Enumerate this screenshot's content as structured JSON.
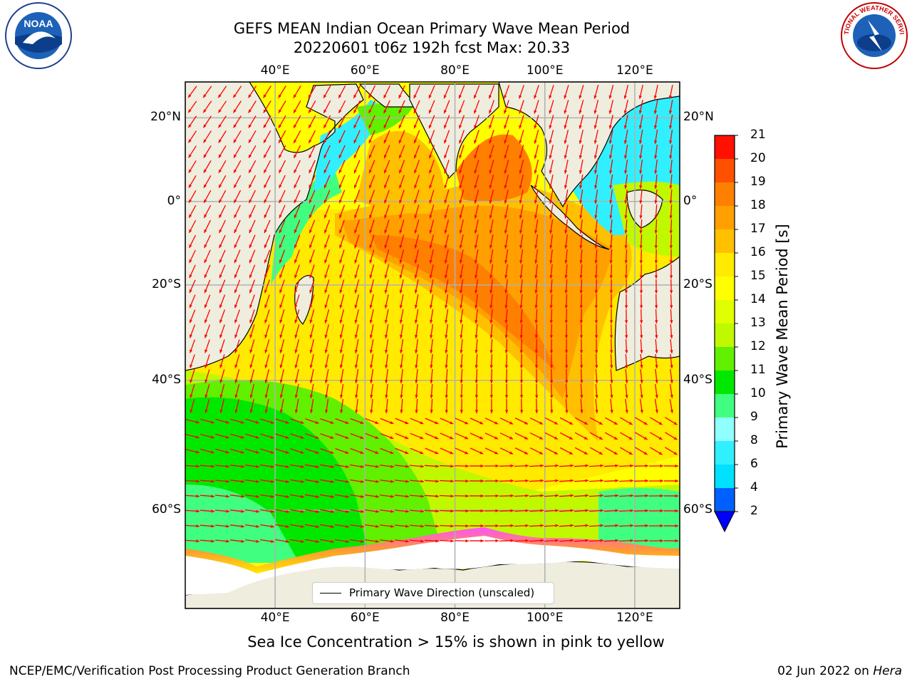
{
  "header": {
    "title_line1": "GEFS MEAN Indian Ocean Primary Wave Mean Period",
    "title_line2": "20220601 t06z 192h fcst   Max: 20.33"
  },
  "map": {
    "lon_ticks": [
      "40°E",
      "60°E",
      "80°E",
      "100°E",
      "120°E"
    ],
    "lat_ticks": [
      "20°N",
      "0°",
      "20°S",
      "40°S",
      "60°S"
    ],
    "lon_values": [
      40,
      60,
      80,
      100,
      120
    ],
    "lat_values": [
      20,
      0,
      -20,
      -40,
      -60
    ],
    "extent": {
      "lon_min": 20,
      "lon_max": 130,
      "lat_min": -70,
      "lat_max": 28
    },
    "colors": {
      "land": "#efedde",
      "ice": "#ffffff",
      "arrow": "#ff0000",
      "grid": "#b0b0b0",
      "coast": "#000000"
    }
  },
  "colorbar": {
    "title": "Primary Wave Mean Period [s]",
    "levels": [
      "2",
      "4",
      "6",
      "8",
      "9",
      "10",
      "11",
      "12",
      "13",
      "14",
      "15",
      "16",
      "17",
      "18",
      "19",
      "20",
      "21"
    ],
    "colors": [
      "#0060ff",
      "#00e0ff",
      "#30f0ff",
      "#90ffff",
      "#40ff80",
      "#00e800",
      "#60f000",
      "#c0f800",
      "#e0ff00",
      "#ffff00",
      "#ffea00",
      "#ffc000",
      "#ffa000",
      "#ff8000",
      "#ff5000",
      "#ff1000"
    ],
    "extend_color": "#0000ff"
  },
  "legend": {
    "label": "Primary Wave Direction (unscaled)"
  },
  "caption": "Sea Ice Concentration > 15% is shown in pink to yellow",
  "footer": {
    "left": "NCEP/EMC/Verification Post Processing Product Generation Branch",
    "right_date": "02 Jun 2022 on",
    "right_host": "Hera"
  },
  "logos": {
    "left": "NOAA",
    "right": "NATIONAL WEATHER SERVICE"
  }
}
